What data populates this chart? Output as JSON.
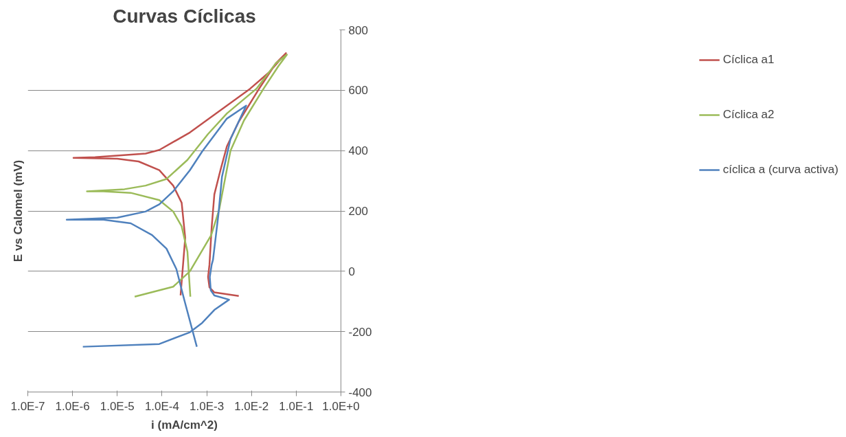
{
  "chart_data": {
    "type": "line",
    "title": "Curvas Cíclicas",
    "xlabel": "i (mA/cm^2)",
    "ylabel": "E vs Calomel (mV)",
    "log": "x",
    "grid": "y",
    "legend": "right",
    "marker": "none",
    "line_style": "solid",
    "xlim": [
      1e-07,
      1
    ],
    "ylim": [
      -400,
      800
    ],
    "xticks": [
      {
        "value": 1e-07,
        "label": "1.0E-7"
      },
      {
        "value": 1e-06,
        "label": "1.0E-6"
      },
      {
        "value": 1e-05,
        "label": "1.0E-5"
      },
      {
        "value": 0.0001,
        "label": "1.0E-4"
      },
      {
        "value": 0.001,
        "label": "1.0E-3"
      },
      {
        "value": 0.01,
        "label": "1.0E-2"
      },
      {
        "value": 0.1,
        "label": "1.0E-1"
      },
      {
        "value": 1,
        "label": "1.0E+0"
      }
    ],
    "yticks": [
      -400,
      -200,
      0,
      200,
      400,
      600,
      800
    ],
    "series": [
      {
        "name": "Cíclica a1",
        "color": "#c0504d",
        "x": [
          0.0052,
          0.00148,
          0.00115,
          0.00107,
          0.00115,
          0.00129,
          0.00148,
          0.00204,
          0.00282,
          0.0052,
          0.0148,
          0.035,
          0.059,
          0.025,
          0.0093,
          0.00117,
          0.00042,
          8.7e-05,
          4.3e-05,
          3.2e-06,
          1.05e-06,
          1e-05,
          3e-05,
          8.7e-05,
          0.000178,
          0.000275,
          0.00033,
          0.00026
        ],
        "values": [
          -82,
          -70,
          -53,
          -19,
          22,
          147,
          255,
          337,
          414,
          496,
          605,
          689,
          723,
          660,
          605,
          508,
          460,
          402,
          390,
          378,
          376,
          373,
          364,
          335,
          284,
          227,
          111,
          -80
        ]
      },
      {
        "name": "Cíclica a2",
        "color": "#9bbb59",
        "x": [
          2.45e-05,
          0.000178,
          0.00042,
          0.00126,
          0.0019,
          0.00282,
          0.0034,
          0.0068,
          0.0186,
          0.04,
          0.062,
          0.035,
          0.0129,
          0.00282,
          0.00107,
          0.00037,
          0.000126,
          4.3e-05,
          1.45e-05,
          2.1e-06,
          4.9e-06,
          2e-05,
          8.7e-05,
          0.000178,
          0.000275,
          0.00037,
          0.00043
        ],
        "values": [
          -84,
          -51,
          0,
          120,
          205,
          338,
          400,
          500,
          605,
          680,
          718,
          689,
          605,
          523,
          455,
          369,
          306,
          284,
          272,
          265,
          265,
          260,
          236,
          198,
          149,
          65,
          -84
        ]
      },
      {
        "name": "cíclica a (curva activa)",
        "color": "#4f81bd",
        "x": [
          1.7e-06,
          8.7e-05,
          0.00042,
          0.00079,
          0.00148,
          0.00316,
          0.00148,
          0.00123,
          0.00117,
          0.00129,
          0.00138,
          0.00182,
          0.00219,
          0.00339,
          0.0076,
          0.00282,
          0.00079,
          0.00042,
          0.000178,
          8.7e-05,
          4.3e-05,
          1e-05,
          7.4e-07,
          4.9e-06,
          2e-05,
          6e-05,
          0.000126,
          0.00021,
          0.00032,
          0.0006
        ],
        "values": [
          -250,
          -241,
          -202,
          -171,
          -128,
          -94,
          -80,
          -63,
          -19,
          22,
          38,
          187,
          313,
          438,
          549,
          506,
          397,
          335,
          265,
          222,
          198,
          178,
          171,
          171,
          159,
          120,
          75,
          7,
          -99,
          -250
        ]
      }
    ]
  }
}
